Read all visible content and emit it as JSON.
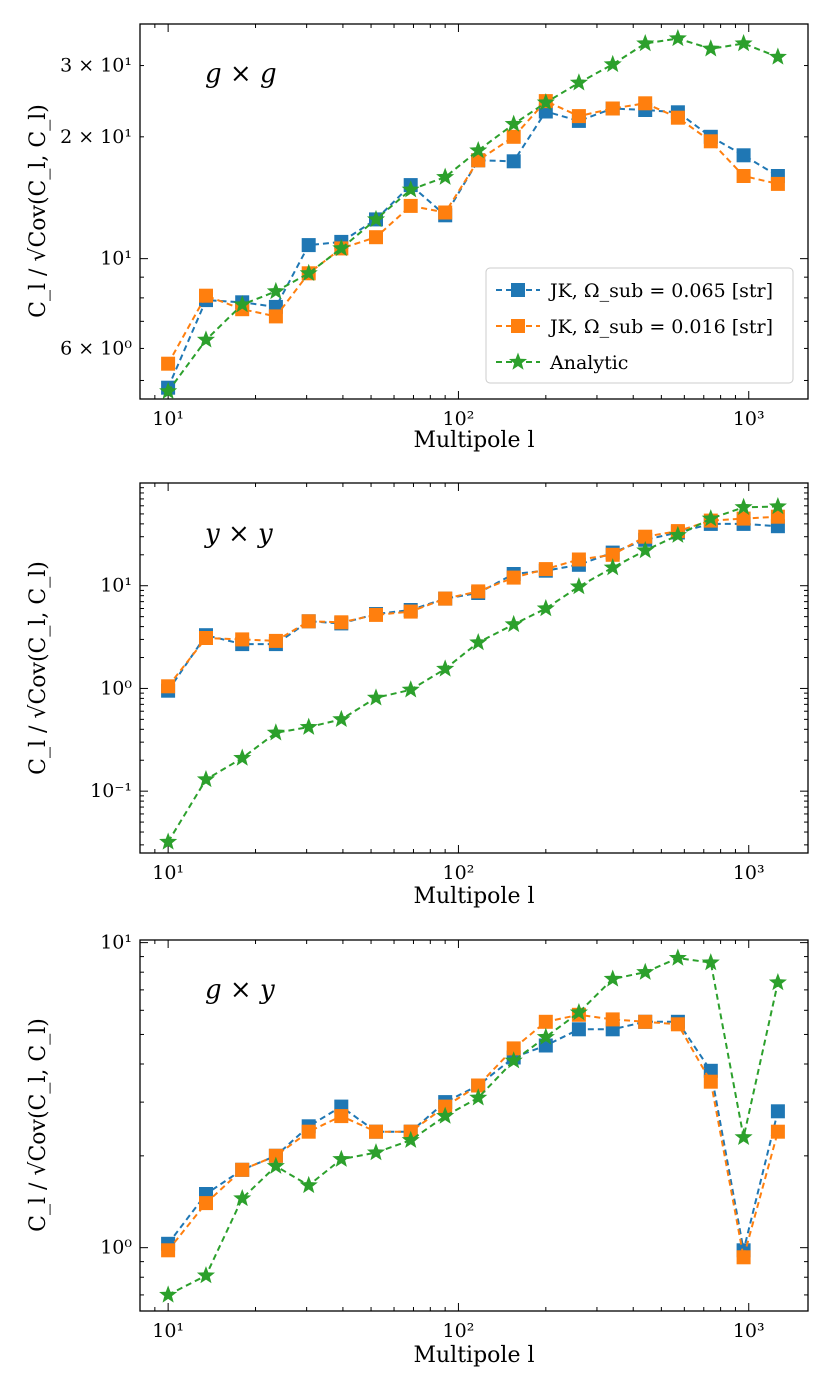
{
  "colors": {
    "jk065": "#1f77b4",
    "jk016": "#ff7f0e",
    "analytic": "#2ca02c"
  },
  "legend": [
    "JK, Ω_sub = 0.065 [str]",
    "JK, Ω_sub = 0.016 [str]",
    "Analytic"
  ],
  "chart_data": [
    {
      "type": "line",
      "title": "g × g",
      "xlabel": "Multipole l",
      "ylabel": "C_l / √Cov(C_l, C_l)",
      "xscale": "log",
      "yscale": "log",
      "xlim": [
        8,
        1600
      ],
      "ylim": [
        4.5,
        38
      ],
      "legend_position": "lower-right",
      "x_ticks": [
        {
          "value": 10,
          "label": "10¹"
        },
        {
          "value": 100,
          "label": "10²"
        },
        {
          "value": 1000,
          "label": "10³"
        }
      ],
      "y_ticks": [
        {
          "value": 6,
          "label": "6 × 10⁰"
        },
        {
          "value": 10,
          "label": "10¹"
        },
        {
          "value": 20,
          "label": "2 × 10¹"
        },
        {
          "value": 30,
          "label": "3 × 10¹"
        }
      ],
      "x": [
        10,
        13.5,
        18,
        23.5,
        30.5,
        39.5,
        52,
        68.5,
        90,
        117,
        155,
        200,
        260,
        340,
        440,
        570,
        740,
        960,
        1260
      ],
      "series": [
        {
          "name": "JK, Ω_sub = 0.065 [str]",
          "color_key": "jk065",
          "marker": "square",
          "values": [
            4.8,
            7.9,
            7.8,
            7.6,
            10.8,
            11.0,
            12.5,
            15.2,
            12.8,
            17.5,
            17.4,
            23.1,
            21.9,
            23.5,
            23.3,
            23.0,
            20.0,
            18.0,
            16.0
          ]
        },
        {
          "name": "JK, Ω_sub = 0.016 [str]",
          "color_key": "jk016",
          "marker": "square",
          "values": [
            5.5,
            8.1,
            7.5,
            7.2,
            9.2,
            10.6,
            11.3,
            13.5,
            13.0,
            17.5,
            20.0,
            24.5,
            22.5,
            23.5,
            24.2,
            22.3,
            19.5,
            16.0,
            15.3
          ]
        },
        {
          "name": "Analytic",
          "color_key": "analytic",
          "marker": "star",
          "values": [
            4.7,
            6.3,
            7.7,
            8.3,
            9.2,
            10.6,
            12.5,
            14.8,
            15.9,
            18.5,
            21.5,
            24.3,
            27.2,
            30.2,
            34.0,
            35.0,
            33.0,
            34.0,
            31.5
          ]
        }
      ]
    },
    {
      "type": "line",
      "title": "y × y",
      "xlabel": "Multipole l",
      "ylabel": "C_l / √Cov(C_l, C_l)",
      "xscale": "log",
      "yscale": "log",
      "xlim": [
        8,
        1600
      ],
      "ylim": [
        0.025,
        100
      ],
      "x_ticks": [
        {
          "value": 10,
          "label": "10¹"
        },
        {
          "value": 100,
          "label": "10²"
        },
        {
          "value": 1000,
          "label": "10³"
        }
      ],
      "y_ticks": [
        {
          "value": 0.1,
          "label": "10⁻¹"
        },
        {
          "value": 1,
          "label": "10⁰"
        },
        {
          "value": 10,
          "label": "10¹"
        }
      ],
      "x": [
        10,
        13.5,
        18,
        23.5,
        30.5,
        39.5,
        52,
        68.5,
        90,
        117,
        155,
        200,
        260,
        340,
        440,
        570,
        740,
        960,
        1260
      ],
      "series": [
        {
          "name": "JK, Ω_sub = 0.065 [str]",
          "color_key": "jk065",
          "marker": "square",
          "values": [
            0.95,
            3.3,
            2.7,
            2.7,
            4.5,
            4.3,
            5.3,
            5.8,
            7.5,
            8.5,
            13.0,
            14.0,
            16.0,
            21.0,
            28.0,
            33.0,
            40.0,
            40.0,
            38.0
          ]
        },
        {
          "name": "JK, Ω_sub = 0.016 [str]",
          "color_key": "jk016",
          "marker": "square",
          "values": [
            1.05,
            3.1,
            3.0,
            2.9,
            4.5,
            4.4,
            5.2,
            5.6,
            7.5,
            8.8,
            12.0,
            14.5,
            18.0,
            20.0,
            30.0,
            34.0,
            43.0,
            45.0,
            47.0
          ]
        },
        {
          "name": "Analytic",
          "color_key": "analytic",
          "marker": "star",
          "values": [
            0.032,
            0.13,
            0.21,
            0.37,
            0.42,
            0.5,
            0.81,
            0.97,
            1.55,
            2.8,
            4.2,
            6.0,
            9.8,
            15.0,
            22.0,
            31.0,
            45.0,
            58.0,
            59.0
          ]
        }
      ]
    },
    {
      "type": "line",
      "title": "g × y",
      "xlabel": "Multipole l",
      "ylabel": "C_l / √Cov(C_l, C_l)",
      "xscale": "log",
      "yscale": "log",
      "xlim": [
        8,
        1600
      ],
      "ylim": [
        0.62,
        10.2
      ],
      "x_ticks": [
        {
          "value": 10,
          "label": "10¹"
        },
        {
          "value": 100,
          "label": "10²"
        },
        {
          "value": 1000,
          "label": "10³"
        }
      ],
      "y_ticks": [
        {
          "value": 1,
          "label": "10⁰"
        },
        {
          "value": 10,
          "label": "10¹"
        }
      ],
      "x": [
        10,
        13.5,
        18,
        23.5,
        30.5,
        39.5,
        52,
        68.5,
        90,
        117,
        155,
        200,
        260,
        340,
        440,
        570,
        740,
        960,
        1260
      ],
      "series": [
        {
          "name": "JK, Ω_sub = 0.065 [str]",
          "color_key": "jk065",
          "marker": "square",
          "values": [
            1.03,
            1.5,
            1.8,
            2.0,
            2.5,
            2.9,
            2.4,
            2.4,
            3.0,
            3.4,
            4.2,
            4.6,
            5.2,
            5.2,
            5.5,
            5.5,
            3.8,
            0.98,
            2.8
          ]
        },
        {
          "name": "JK, Ω_sub = 0.016 [str]",
          "color_key": "jk016",
          "marker": "square",
          "values": [
            0.98,
            1.4,
            1.8,
            2.0,
            2.4,
            2.7,
            2.4,
            2.4,
            2.9,
            3.4,
            4.5,
            5.5,
            5.8,
            5.6,
            5.5,
            5.4,
            3.5,
            0.93,
            2.4
          ]
        },
        {
          "name": "Analytic",
          "color_key": "analytic",
          "marker": "star",
          "values": [
            0.7,
            0.81,
            1.45,
            1.85,
            1.6,
            1.95,
            2.05,
            2.25,
            2.7,
            3.1,
            4.1,
            4.9,
            5.9,
            7.6,
            8.0,
            8.9,
            8.6,
            2.3,
            7.4
          ]
        }
      ]
    }
  ]
}
